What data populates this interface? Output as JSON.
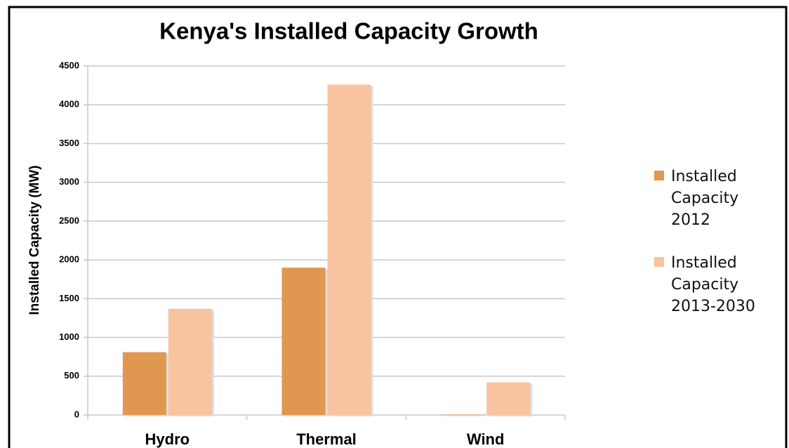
{
  "chart_data": {
    "type": "bar",
    "title": "Kenya's Installed Capacity Growth",
    "y_label": "Installed Capacity  (MW)",
    "categories": [
      "Hydro",
      "Thermal",
      "Wind"
    ],
    "series": [
      {
        "name": "Installed Capacity 2012",
        "color": "#e0974f",
        "values": [
          810,
          1900,
          5
        ]
      },
      {
        "name": "Installed Capacity 2013-2030",
        "color": "#f9c3a0",
        "values": [
          1370,
          4260,
          420
        ]
      }
    ],
    "ylim": [
      0,
      4500
    ],
    "yticks": [
      0,
      500,
      1000,
      1500,
      2000,
      2500,
      3000,
      3500,
      4000,
      4500
    ],
    "grid": true,
    "legend": "right"
  }
}
